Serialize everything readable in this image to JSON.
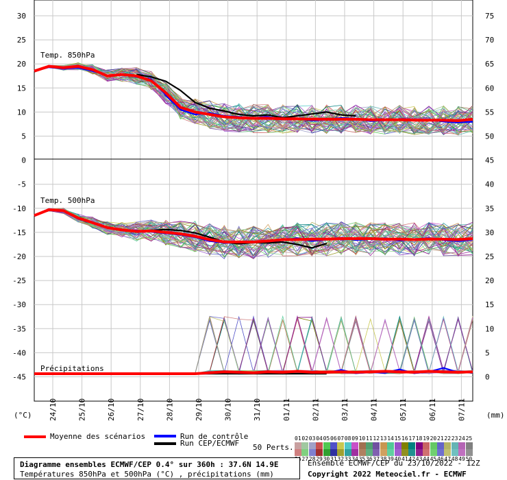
{
  "chart_data": {
    "type": "line",
    "x_dates": [
      "24/10",
      "25/10",
      "26/10",
      "27/10",
      "28/10",
      "29/10",
      "30/10",
      "31/10",
      "01/11",
      "02/11",
      "03/11",
      "04/11",
      "05/11",
      "06/11",
      "07/11"
    ],
    "left_axis": {
      "ticks": [
        "30",
        "25",
        "20",
        "15",
        "10",
        "5",
        "0",
        "-5",
        "-10",
        "-15",
        "-20",
        "-25",
        "-30",
        "-35",
        "-40",
        "-45"
      ],
      "unit": "(°C)"
    },
    "right_axis": {
      "ticks": [
        "75",
        "70",
        "65",
        "60",
        "55",
        "50",
        "45",
        "40",
        "35",
        "30",
        "25",
        "20",
        "15",
        "10",
        "5",
        "0"
      ],
      "unit": "(mm)"
    },
    "panels": [
      {
        "label": "Temp. 850hPa"
      },
      {
        "label": "Temp. 500hPa"
      },
      {
        "label": "Précipitations"
      }
    ],
    "series": [
      {
        "name": "Moyenne des scénarios",
        "color": "#ff0000",
        "t850": [
          18.5,
          19.5,
          19.2,
          19.5,
          18.8,
          17.5,
          17.8,
          17.5,
          16.5,
          14,
          11,
          10,
          9.5,
          9,
          8.8,
          8.7,
          8.7,
          8.6,
          8.6,
          8.5,
          8.5,
          8.5,
          8.5,
          8.4,
          8.4,
          8.4,
          8.3,
          8.3,
          8.3,
          8.2,
          8.5
        ],
        "t500": [
          -11.5,
          -10.3,
          -10.5,
          -12,
          -13,
          -14,
          -14.5,
          -14.8,
          -14.7,
          -15,
          -15.3,
          -15.8,
          -16.5,
          -17,
          -17,
          -17,
          -16.8,
          -16.5,
          -16.5,
          -16.4,
          -16.4,
          -16.3,
          -16.3,
          -16.3,
          -16.4,
          -16.4,
          -16.5,
          -16.4,
          -16.4,
          -16.5,
          -16.3
        ],
        "precip": [
          0,
          0,
          0,
          0,
          0,
          0,
          0,
          0,
          0,
          0,
          0,
          0,
          0.2,
          0.4,
          0.3,
          0.2,
          0.4,
          0.3,
          0.5,
          0.3,
          0.3,
          0.4,
          0.3,
          0.4,
          0.5,
          0.4,
          0.3,
          0.5,
          0.4,
          0.3,
          0.4
        ]
      },
      {
        "name": "Run de contrôle",
        "color": "#0000ff",
        "t850": [
          18.5,
          19.3,
          19.0,
          19.2,
          18.5,
          17.6,
          17.8,
          17.3,
          16.8,
          13.5,
          10.5,
          9.5,
          9.8,
          9.2,
          9,
          8.8,
          9,
          8.5,
          8.7,
          8.2,
          8.4,
          8.8,
          8.6,
          8.1,
          8.3,
          8.5,
          8.2,
          8.4,
          8.0,
          7.8,
          8.0
        ],
        "t500": [
          -11.5,
          -10.4,
          -10.6,
          -12.2,
          -13.1,
          -14.1,
          -14.6,
          -14.6,
          -14.9,
          -15.2,
          -15.5,
          -16,
          -16.8,
          -17.2,
          -17.1,
          -16.9,
          -17,
          -16.6,
          -16.2,
          -16.8,
          -16.5,
          -16.1,
          -16.6,
          -16.4,
          -16.2,
          -16.7,
          -16.4,
          -16.2,
          -16.6,
          -16.8,
          -16.5
        ],
        "precip": [
          0,
          0,
          0,
          0,
          0,
          0,
          0,
          0,
          0,
          0,
          0,
          0,
          0,
          0.3,
          0,
          0.2,
          0.5,
          0,
          0.6,
          0,
          0.2,
          0.8,
          0.1,
          0.3,
          0.2,
          0.9,
          0.1,
          0.4,
          1.2,
          0.3,
          0.2
        ]
      },
      {
        "name": "Run CEP/ECMWF",
        "color": "#000000",
        "t850": [
          null,
          null,
          null,
          null,
          null,
          null,
          null,
          17.8,
          17.3,
          16.4,
          14.5,
          12,
          10.8,
          10.2,
          9.5,
          9.2,
          9.4,
          8.8,
          9.2,
          9.6,
          10,
          9.4,
          9.2,
          null,
          null,
          null,
          null,
          null,
          null,
          null,
          null
        ],
        "t500": [
          null,
          null,
          null,
          null,
          null,
          null,
          null,
          null,
          -14.6,
          -14.4,
          -14.6,
          -15.1,
          -16,
          -17,
          -17.4,
          -17.1,
          -17.2,
          -17.0,
          -17.5,
          -18.2,
          -17.3,
          null,
          null,
          null,
          null,
          null,
          null,
          null,
          null,
          null,
          null
        ],
        "precip": [
          null,
          null,
          null,
          null,
          null,
          null,
          null,
          null,
          0,
          0,
          0,
          0,
          0,
          0,
          0,
          0,
          0,
          0,
          0,
          0,
          0,
          null,
          null,
          null,
          null,
          null,
          null,
          null,
          null,
          null,
          null
        ]
      }
    ],
    "pert_count": 50
  },
  "legend": {
    "mean": "Moyenne des scénarios",
    "control": "Run de contrôle",
    "oper": "Run CEP/ECMWF",
    "perts": "50 Perts."
  },
  "pert_labels_row1": [
    "01",
    "02",
    "03",
    "04",
    "05",
    "06",
    "07",
    "08",
    "09",
    "10",
    "11",
    "12",
    "13",
    "14",
    "15",
    "16",
    "17",
    "18",
    "19",
    "20",
    "21",
    "22",
    "23",
    "24",
    "25"
  ],
  "pert_labels_row2": [
    "26",
    "27",
    "28",
    "29",
    "30",
    "31",
    "32",
    "33",
    "34",
    "35",
    "36",
    "37",
    "38",
    "39",
    "40",
    "41",
    "42",
    "43",
    "44",
    "45",
    "46",
    "47",
    "48",
    "49",
    "50"
  ],
  "pert_colors_row1": [
    "#c8a0a0",
    "#a0c8a0",
    "#a0a0c8",
    "#c85050",
    "#50c850",
    "#5050c8",
    "#c8c850",
    "#50c8c8",
    "#c850c8",
    "#a07050",
    "#50a070",
    "#7050a0",
    "#c89650",
    "#50c896",
    "#9650c8",
    "#808000",
    "#008080",
    "#800080",
    "#c86464",
    "#64c864",
    "#6464c8",
    "#b4b464",
    "#64b4b4",
    "#b464b4",
    "#808080"
  ],
  "pert_colors_row2": [
    "#d08080",
    "#80d080",
    "#8080d0",
    "#a03030",
    "#30a030",
    "#3030a0",
    "#a0a030",
    "#30a0a0",
    "#a030a0",
    "#b08060",
    "#60b080",
    "#8060b0",
    "#d0a060",
    "#60d0a0",
    "#a060d0",
    "#909020",
    "#209090",
    "#902090",
    "#d07070",
    "#70d070",
    "#7070d0",
    "#c0c070",
    "#70c0c0",
    "#c070c0",
    "#909090"
  ],
  "footer": {
    "title": "Diagramme ensembles ECMWF/CEP 0.4° sur 360h : 37.6N 14.9E",
    "subtitle": "Températures 850hPa et 500hPa (°C) , précipitations (mm)",
    "run_info": "Ensemble ECMWF/CEP du 23/10/2022 - 12Z",
    "copyright": "Copyright 2022 Meteociel.fr - ECMWF"
  }
}
